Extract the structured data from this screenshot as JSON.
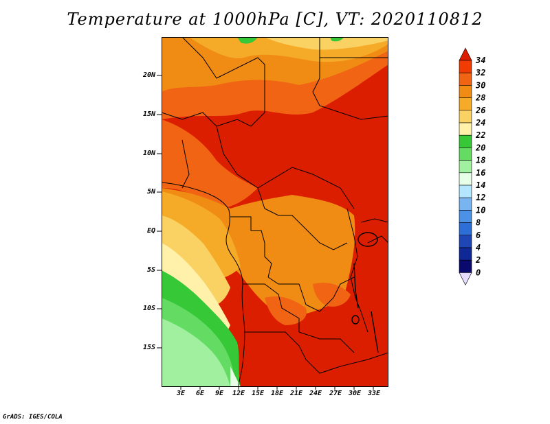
{
  "title": "Temperature at 1000hPa [C], VT: 2020110812",
  "credit": "GrADS: IGES/COLA",
  "map": {
    "lat_labels": [
      "20N",
      "15N",
      "10N",
      "5N",
      "EQ",
      "5S",
      "10S",
      "15S"
    ],
    "lon_labels": [
      "3E",
      "6E",
      "9E",
      "12E",
      "15E",
      "18E",
      "21E",
      "24E",
      "27E",
      "30E",
      "33E"
    ]
  },
  "colorbar": {
    "levels": [
      "34",
      "32",
      "30",
      "28",
      "26",
      "24",
      "22",
      "20",
      "18",
      "16",
      "14",
      "12",
      "10",
      "8",
      "6",
      "4",
      "2",
      "0"
    ],
    "colors": [
      "#dc1e00",
      "#f03c00",
      "#f06414",
      "#f08c14",
      "#f5aa28",
      "#fad264",
      "#fff0aa",
      "#37c837",
      "#64dc64",
      "#a0f0a0",
      "#e6ffe6",
      "#b4e6ff",
      "#78b4f0",
      "#4b91e6",
      "#2d6ed7",
      "#1e46b4",
      "#0f2896",
      "#0a0a6e",
      "#e6dcff"
    ]
  }
}
